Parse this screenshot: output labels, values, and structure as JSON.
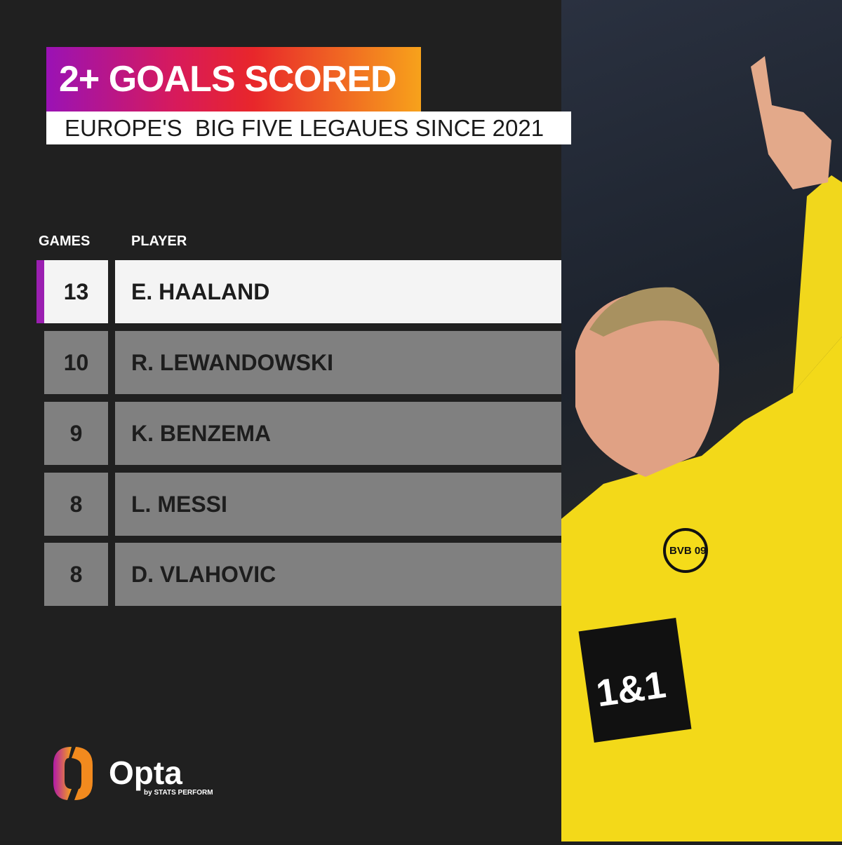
{
  "title": "2+ GOALS SCORED",
  "subtitle": "EUROPE'S  BIG FIVE LEGAUES SINCE 2021",
  "table": {
    "headers": {
      "games": "GAMES",
      "player": "PLAYER"
    },
    "rows": [
      {
        "games": "13",
        "player": "E. HAALAND"
      },
      {
        "games": "10",
        "player": "R. LEWANDOWSKI"
      },
      {
        "games": "9",
        "player": "K. BENZEMA"
      },
      {
        "games": "8",
        "player": "L. MESSI"
      },
      {
        "games": "8",
        "player": "D. VLAHOVIC"
      }
    ]
  },
  "branding": {
    "logo": "Opta",
    "tagline": "by STATS PERFORM"
  },
  "photo": {
    "jersey_sponsor": "1&1",
    "badge": "BVB 09"
  },
  "colors": {
    "highlight": "#9b1fb1",
    "gradient": [
      "#9a12b5",
      "#e8262b",
      "#f7a21b"
    ],
    "jersey": "#f5dc1a"
  }
}
